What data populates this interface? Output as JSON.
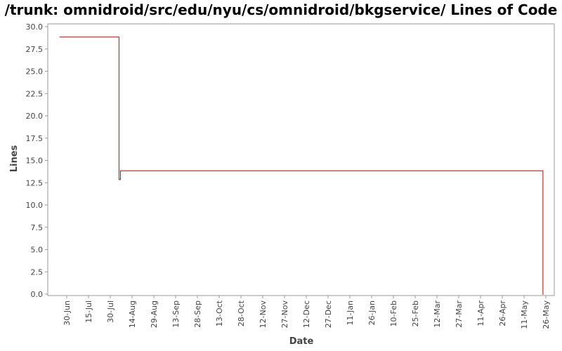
{
  "chart_data": {
    "type": "line",
    "title": "/trunk: omnidroid/src/edu/nyu/cs/omnidroid/bkgservice/ Lines of Code",
    "xlabel": "Date",
    "ylabel": "Lines",
    "x_ticks": [
      "30-Jun",
      "15-Jul",
      "30-Jul",
      "14-Aug",
      "29-Aug",
      "13-Sep",
      "28-Sep",
      "13-Oct",
      "28-Oct",
      "12-Nov",
      "27-Nov",
      "12-Dec",
      "27-Dec",
      "11-Jan",
      "26-Jan",
      "10-Feb",
      "25-Feb",
      "12-Mar",
      "27-Mar",
      "11-Apr",
      "26-Apr",
      "11-May",
      "26-May"
    ],
    "y_ticks": [
      "0.0",
      "2.5",
      "5.0",
      "7.5",
      "10.0",
      "12.5",
      "15.0",
      "17.5",
      "20.0",
      "22.5",
      "25.0",
      "27.5",
      "30.0"
    ],
    "ylim": [
      0,
      30
    ],
    "line_color": "#cc0000",
    "series": [
      {
        "step": true,
        "x": [
          "25-Jun",
          "05-Aug",
          "05-Aug",
          "06-Aug",
          "06-Aug",
          "24-May"
        ],
        "y": [
          29,
          29,
          13,
          13,
          14,
          14
        ],
        "drop_to_zero_at": "24-May"
      }
    ]
  }
}
